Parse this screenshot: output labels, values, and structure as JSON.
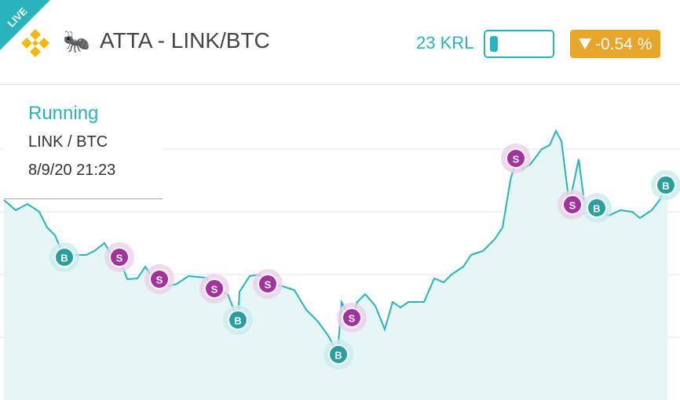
{
  "header": {
    "badge": "LIVE",
    "icon": "🐜",
    "title": "ATTA - LINK/BTC",
    "balance": "23 KRL",
    "change": "-0.54 %"
  },
  "info": {
    "status": "Running",
    "pair": "LINK / BTC",
    "date": "8/9/20 21:23"
  },
  "chart_data": {
    "type": "line",
    "color": "#26b3bd",
    "xlim": [
      0,
      866
    ],
    "ylim": [
      0,
      100
    ],
    "x": [
      5,
      20,
      35,
      50,
      60,
      70,
      82,
      95,
      110,
      120,
      133,
      140,
      152,
      162,
      175,
      185,
      195,
      205,
      215,
      225,
      240,
      262,
      275,
      290,
      303,
      305,
      318,
      330,
      342,
      360,
      375,
      390,
      405,
      418,
      430,
      435,
      440,
      448,
      455,
      465,
      478,
      490,
      500,
      510,
      520,
      540,
      553,
      565,
      575,
      590,
      600,
      615,
      630,
      640,
      650,
      658,
      665,
      675,
      690,
      700,
      708,
      715,
      725,
      737,
      745,
      760,
      775,
      790,
      805,
      815,
      830,
      840,
      850
    ],
    "values": [
      63.75,
      60.5,
      62.5,
      60,
      55,
      52.5,
      45.5,
      46.25,
      46.25,
      47.5,
      50,
      47,
      45.5,
      38.5,
      38.75,
      42.5,
      38.75,
      38.5,
      36.25,
      37,
      39.5,
      39,
      35.5,
      33.75,
      25.5,
      34.5,
      39.5,
      40,
      37,
      36.25,
      35,
      28.75,
      25,
      20.5,
      15,
      31.25,
      28.75,
      26.25,
      31.25,
      33.75,
      30,
      22.5,
      31.25,
      29.5,
      31.25,
      31.25,
      38.75,
      37.5,
      40,
      42.5,
      46.25,
      47.5,
      51.25,
      55,
      70,
      77.5,
      73.75,
      75,
      80,
      81.25,
      85.75,
      82.5,
      62.5,
      76.75,
      61.25,
      61.25,
      58.75,
      60.5,
      60,
      58,
      60.5,
      63.75,
      68.75
    ],
    "markers": [
      {
        "x": 82,
        "y": 45.5,
        "label": "B"
      },
      {
        "x": 152,
        "y": 45.5,
        "label": "S"
      },
      {
        "x": 203,
        "y": 38.5,
        "label": "S"
      },
      {
        "x": 273,
        "y": 35.5,
        "label": "S"
      },
      {
        "x": 303,
        "y": 25.5,
        "label": "B"
      },
      {
        "x": 341,
        "y": 37,
        "label": "S"
      },
      {
        "x": 431,
        "y": 14.5,
        "label": "B"
      },
      {
        "x": 448,
        "y": 26.25,
        "label": "S"
      },
      {
        "x": 657,
        "y": 77,
        "label": "S"
      },
      {
        "x": 729,
        "y": 62.25,
        "label": "S"
      },
      {
        "x": 760,
        "y": 61.25,
        "label": "B"
      },
      {
        "x": 848,
        "y": 68.5,
        "label": "B"
      }
    ]
  }
}
